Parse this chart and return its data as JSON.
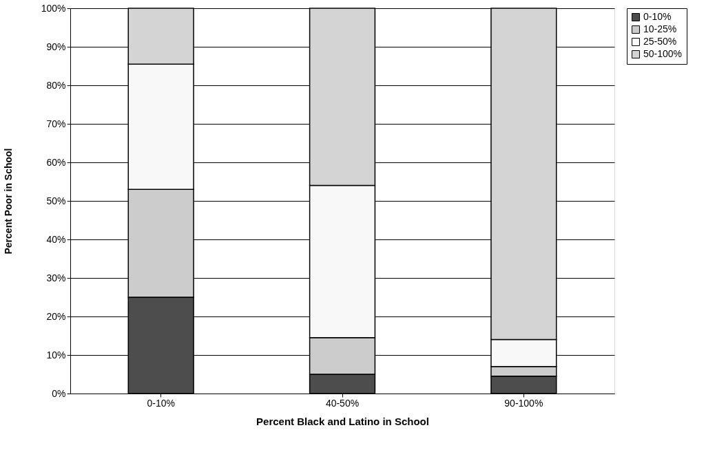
{
  "chart_data": {
    "type": "bar",
    "stacked": true,
    "xlabel": "Percent Black and Latino in School",
    "ylabel": "Percent Poor in School",
    "categories": [
      "0-10%",
      "40-50%",
      "90-100%"
    ],
    "series": [
      {
        "name": "0-10%",
        "color": "#4d4d4d",
        "values": [
          25,
          5,
          4.5
        ]
      },
      {
        "name": "10-25%",
        "color": "#cccccc",
        "values": [
          28,
          9.5,
          2.5
        ]
      },
      {
        "name": "25-50%",
        "color": "#f8f8f8",
        "values": [
          32.5,
          39.5,
          7
        ]
      },
      {
        "name": "50-100%",
        "color": "#d4d4d4",
        "values": [
          14.5,
          46,
          86
        ]
      }
    ],
    "ylim": [
      0,
      100
    ],
    "yticks": [
      {
        "value": 0,
        "label": "0%"
      },
      {
        "value": 10,
        "label": "10%"
      },
      {
        "value": 20,
        "label": "20%"
      },
      {
        "value": 30,
        "label": "30%"
      },
      {
        "value": 40,
        "label": "40%"
      },
      {
        "value": 50,
        "label": "50%"
      },
      {
        "value": 60,
        "label": "60%"
      },
      {
        "value": 70,
        "label": "70%"
      },
      {
        "value": 80,
        "label": "80%"
      },
      {
        "value": 90,
        "label": "90%"
      },
      {
        "value": 100,
        "label": "100%"
      }
    ],
    "grid": "y",
    "legend": "right"
  }
}
